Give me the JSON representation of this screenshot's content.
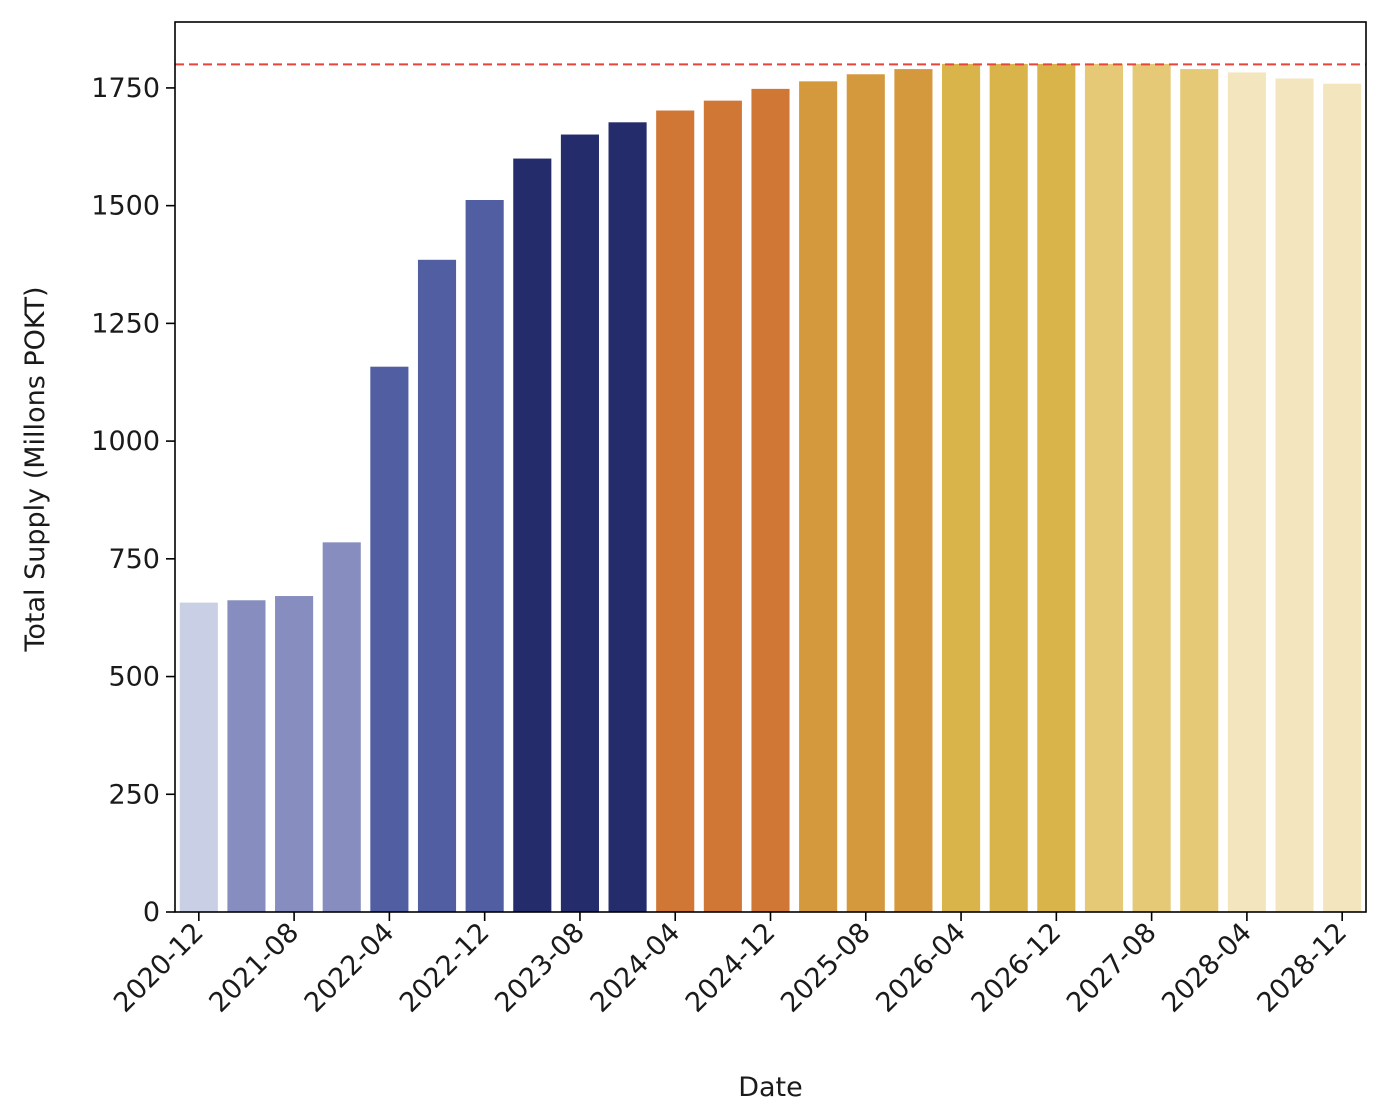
{
  "chart_data": {
    "type": "bar",
    "title": "",
    "xlabel": "Date",
    "ylabel": "Total Supply (Millons POKT)",
    "ylim": [
      0,
      1890
    ],
    "yticks": [
      0,
      250,
      500,
      750,
      1000,
      1250,
      1500,
      1750
    ],
    "xtick_labels": [
      "2020-12",
      "2021-08",
      "2022-04",
      "2022-12",
      "2023-08",
      "2024-04",
      "2024-12",
      "2025-08",
      "2026-04",
      "2026-12",
      "2027-08",
      "2028-04",
      "2028-12"
    ],
    "xtick_every": 2,
    "grid": false,
    "reference_line": {
      "value": 1800,
      "color": "#e8443a",
      "style": "dashed"
    },
    "bars": [
      {
        "value": 657,
        "color": "#c9cfe4"
      },
      {
        "value": 662,
        "color": "#878ebf"
      },
      {
        "value": 671,
        "color": "#878ebf"
      },
      {
        "value": 785,
        "color": "#878ebf"
      },
      {
        "value": 1158,
        "color": "#515ea2"
      },
      {
        "value": 1385,
        "color": "#515ea2"
      },
      {
        "value": 1512,
        "color": "#515ea2"
      },
      {
        "value": 1600,
        "color": "#252c6b"
      },
      {
        "value": 1651,
        "color": "#252c6b"
      },
      {
        "value": 1677,
        "color": "#252c6b"
      },
      {
        "value": 1702,
        "color": "#d07735"
      },
      {
        "value": 1723,
        "color": "#d07735"
      },
      {
        "value": 1748,
        "color": "#d07735"
      },
      {
        "value": 1764,
        "color": "#d5993d"
      },
      {
        "value": 1779,
        "color": "#d5993d"
      },
      {
        "value": 1790,
        "color": "#d5993d"
      },
      {
        "value": 1801,
        "color": "#d9b44a"
      },
      {
        "value": 1801,
        "color": "#d9b44a"
      },
      {
        "value": 1801,
        "color": "#d9b44a"
      },
      {
        "value": 1801,
        "color": "#e5c977"
      },
      {
        "value": 1801,
        "color": "#e5c977"
      },
      {
        "value": 1790,
        "color": "#e5c977"
      },
      {
        "value": 1783,
        "color": "#f3e6be"
      },
      {
        "value": 1770,
        "color": "#f3e6be"
      },
      {
        "value": 1759,
        "color": "#f3e6be"
      }
    ]
  }
}
